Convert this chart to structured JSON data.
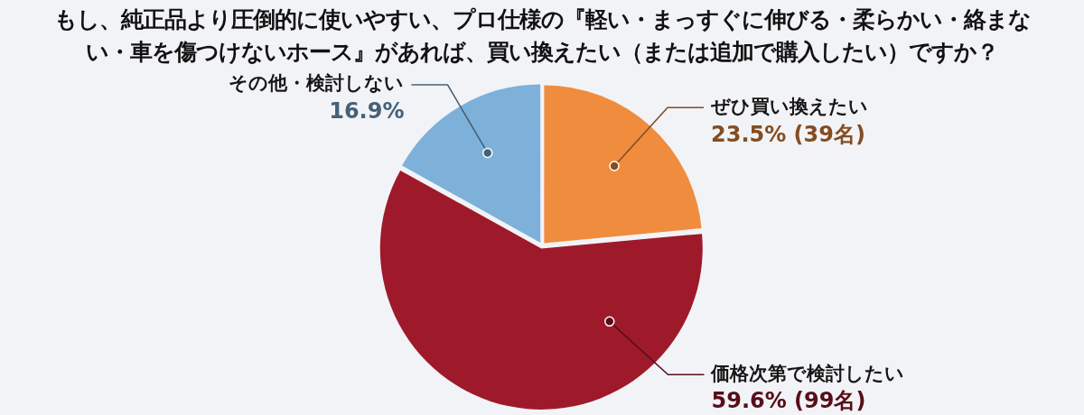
{
  "chart_data": {
    "type": "pie",
    "title": "もし、純正品より圧倒的に使いやすい、プロ仕様の『軽い・まっすぐに伸びる・柔らかい・絡まない・車を傷つけないホース』があれば、買い換えたい（または追加で購入したい）ですか？",
    "categories": [
      "ぜひ買い換えたい",
      "価格次第で検討したい",
      "その他・検討しない"
    ],
    "values": [
      23.5,
      59.6,
      16.9
    ],
    "colors": [
      "#f08c3e",
      "#9e1a2b",
      "#7db1da"
    ],
    "value_labels": [
      "23.5% (39名)",
      "59.6% (99名)",
      "16.9%"
    ]
  }
}
